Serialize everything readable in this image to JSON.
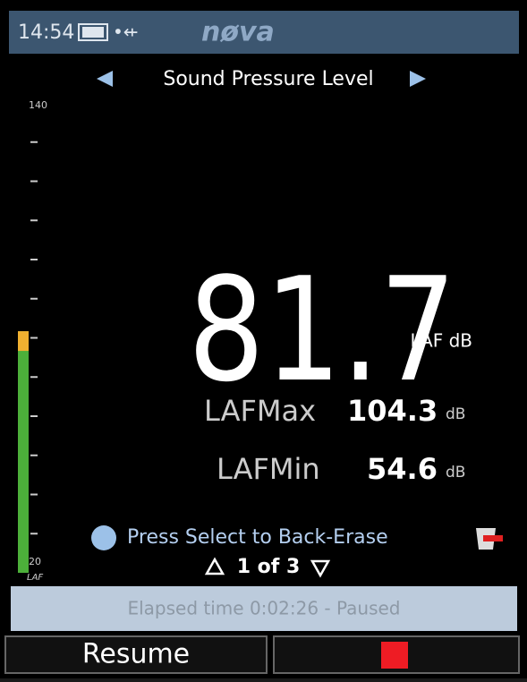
{
  "status_bar": {
    "time": "14:54",
    "brand": "nøva"
  },
  "screen_title": "Sound Pressure Level",
  "meter": {
    "max": 140,
    "min": 20,
    "unit": "LAF"
  },
  "reading": {
    "value": 81.7,
    "unit": "LAF dB"
  },
  "stats": [
    {
      "label": "LAFMax",
      "value": 104.3,
      "unit": "dB"
    },
    {
      "label": "LAFMin",
      "value": 54.6,
      "unit": "dB"
    }
  ],
  "hint": "Press Select to Back-Erase",
  "page": "1 of 3",
  "elapsed": "Elapsed time  0:02:26 - Paused",
  "buttons": {
    "left": "Resume"
  }
}
